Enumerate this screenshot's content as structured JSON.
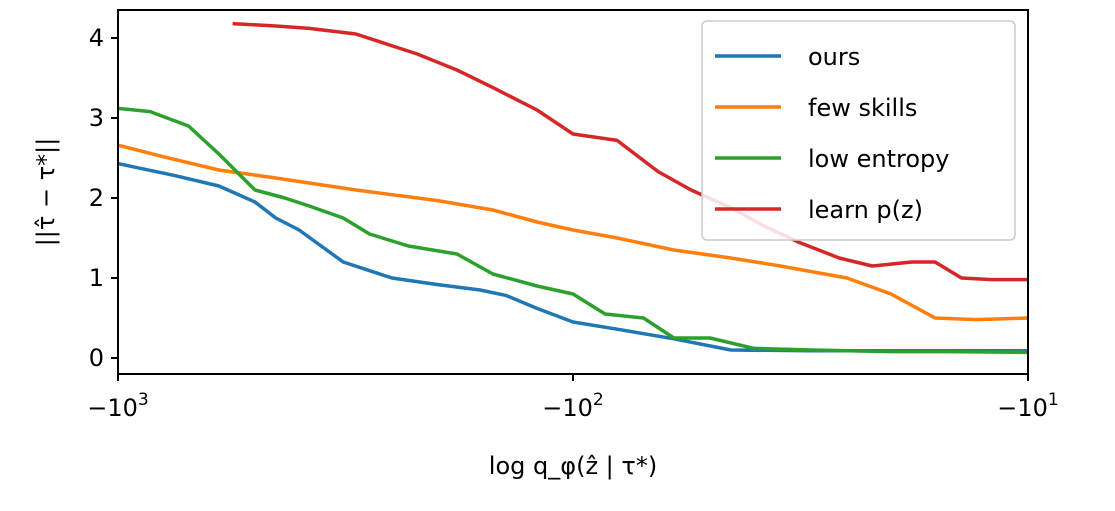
{
  "chart_data": {
    "type": "line",
    "xscale": "symlog",
    "xlabel": "log q_φ(ẑ | τ*)",
    "ylabel": "||τ̂ − τ*||",
    "xlim": [
      -1000,
      -10
    ],
    "ylim": [
      -0.2,
      4.35
    ],
    "x_ticks": [
      {
        "value": -1000,
        "base": "−10",
        "exp": "3"
      },
      {
        "value": -100,
        "base": "−10",
        "exp": "2"
      },
      {
        "value": -10,
        "base": "−10",
        "exp": "1"
      }
    ],
    "y_ticks": [
      {
        "value": 0,
        "label": "0"
      },
      {
        "value": 1,
        "label": "1"
      },
      {
        "value": 2,
        "label": "2"
      },
      {
        "value": 3,
        "label": "3"
      },
      {
        "value": 4,
        "label": "4"
      }
    ],
    "legend_position": "top-right",
    "series": [
      {
        "name": "ours",
        "color": "#1f77b4",
        "x": [
          -1000,
          -750,
          -600,
          -500,
          -450,
          -400,
          -320,
          -250,
          -200,
          -160,
          -140,
          -120,
          -100,
          -80,
          -60,
          -45,
          -30,
          -20,
          -15,
          -10
        ],
        "y": [
          2.43,
          2.28,
          2.15,
          1.95,
          1.75,
          1.6,
          1.2,
          1.0,
          0.92,
          0.85,
          0.78,
          0.62,
          0.45,
          0.36,
          0.24,
          0.1,
          0.09,
          0.09,
          0.09,
          0.09
        ]
      },
      {
        "name": "few skills",
        "color": "#ff7f0e",
        "x": [
          -1000,
          -800,
          -600,
          -450,
          -300,
          -200,
          -150,
          -120,
          -100,
          -80,
          -60,
          -45,
          -35,
          -25,
          -20,
          -16,
          -13,
          -10
        ],
        "y": [
          2.66,
          2.52,
          2.35,
          2.25,
          2.1,
          1.97,
          1.85,
          1.7,
          1.6,
          1.5,
          1.35,
          1.25,
          1.15,
          1.0,
          0.8,
          0.5,
          0.48,
          0.5
        ]
      },
      {
        "name": "low entropy",
        "color": "#2ca02c",
        "x": [
          -1000,
          -850,
          -700,
          -600,
          -500,
          -430,
          -380,
          -320,
          -280,
          -230,
          -180,
          -150,
          -120,
          -100,
          -85,
          -70,
          -60,
          -50,
          -40,
          -30,
          -20,
          -15,
          -10
        ],
        "y": [
          3.12,
          3.08,
          2.9,
          2.55,
          2.1,
          2.0,
          1.9,
          1.75,
          1.55,
          1.4,
          1.3,
          1.05,
          0.9,
          0.8,
          0.55,
          0.5,
          0.25,
          0.25,
          0.12,
          0.1,
          0.08,
          0.08,
          0.07
        ]
      },
      {
        "name": "learn p(z)",
        "color": "#d62728",
        "x": [
          -560,
          -450,
          -380,
          -300,
          -220,
          -180,
          -150,
          -120,
          -100,
          -80,
          -65,
          -55,
          -45,
          -38,
          -32,
          -26,
          -22,
          -18,
          -16,
          -14,
          -12,
          -10
        ],
        "y": [
          4.18,
          4.15,
          4.12,
          4.05,
          3.8,
          3.6,
          3.38,
          3.1,
          2.8,
          2.72,
          2.33,
          2.1,
          1.88,
          1.65,
          1.45,
          1.25,
          1.15,
          1.2,
          1.2,
          1.0,
          0.98,
          0.98
        ]
      }
    ]
  }
}
